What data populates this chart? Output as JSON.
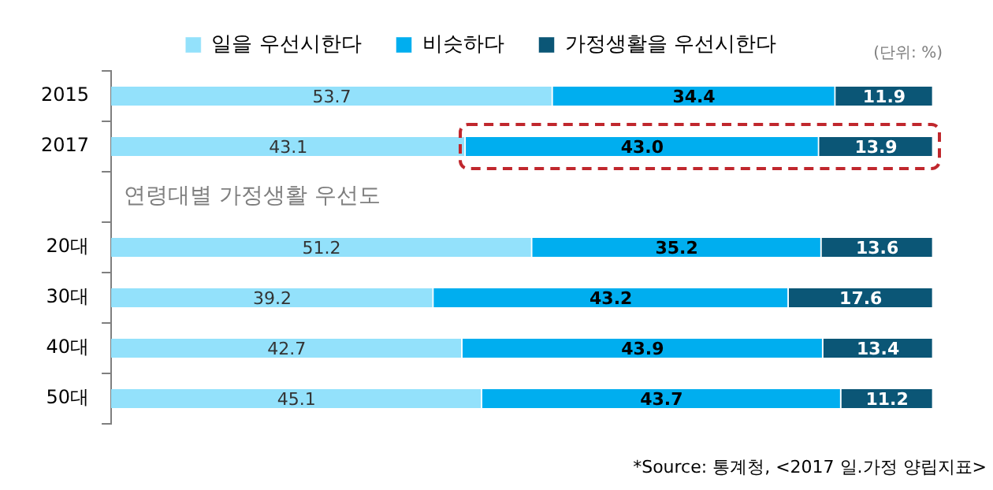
{
  "chart_data": {
    "type": "bar",
    "orientation": "horizontal",
    "stacked": true,
    "grid": false,
    "legend": "top",
    "tick_labels": "y",
    "categories": [
      "2015",
      "2017",
      null,
      "20대",
      "30대",
      "40대",
      "50대"
    ],
    "xlim": [
      0,
      100
    ],
    "series": [
      {
        "name": "일을 우선시한다",
        "color": "#93e1fb",
        "values": [
          53.7,
          43.1,
          null,
          51.2,
          39.2,
          42.7,
          45.1
        ],
        "value_labels": [
          "53.7",
          "43.1",
          null,
          "51.2",
          "39.2",
          "42.7",
          "45.1"
        ]
      },
      {
        "name": "비슷하다",
        "color": "#00aeef",
        "values": [
          34.4,
          43.0,
          null,
          35.2,
          43.2,
          43.9,
          43.7
        ],
        "value_labels": [
          "34.4",
          "43.0",
          null,
          "35.2",
          "43.2",
          "43.9",
          "43.7"
        ]
      },
      {
        "name": "가정생활을 우선시한다",
        "color": "#0b5676",
        "values": [
          11.9,
          13.9,
          null,
          13.6,
          17.6,
          13.4,
          11.2
        ],
        "value_labels": [
          "11.9",
          "13.9",
          null,
          "13.6",
          "17.6",
          "13.4",
          "11.2"
        ]
      }
    ],
    "annotations": [
      "연령대별 가정생활 우선도",
      "(단위: %)",
      "*Source: 통계청, <2017 일.가정 양립지표>"
    ]
  }
}
